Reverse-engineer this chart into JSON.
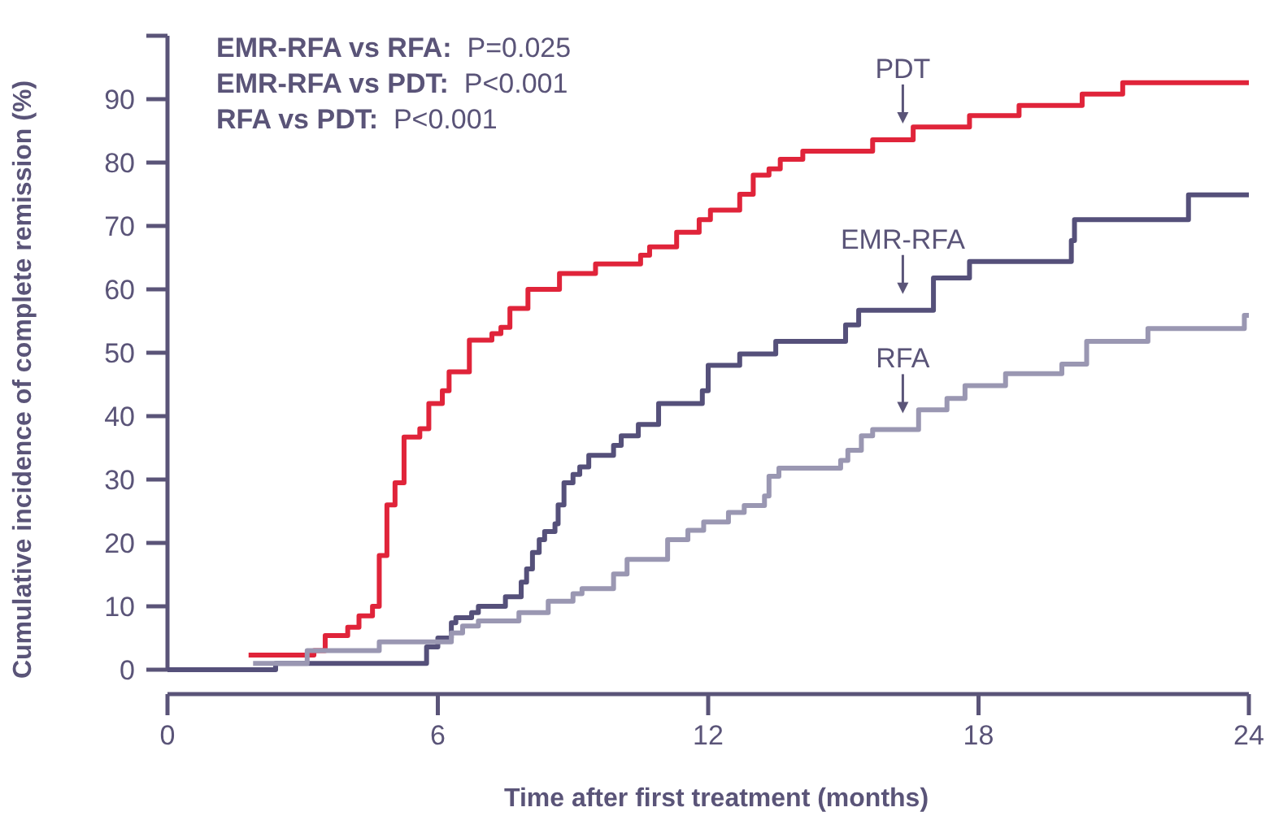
{
  "chart_data": {
    "type": "step",
    "xlabel": "Time after first treatment (months)",
    "ylabel": "Cumulative incidence of complete remission (%)",
    "xlim": [
      0,
      24
    ],
    "xticks": [
      0,
      6,
      12,
      18,
      24
    ],
    "ylim": [
      0,
      100
    ],
    "yticks": [
      0,
      10,
      20,
      30,
      40,
      50,
      60,
      70,
      80,
      90,
      {
        "value": 100,
        "label": null
      }
    ],
    "grid": false,
    "legend": false,
    "series": [
      {
        "name": "PDT",
        "color": "#e0243a",
        "x": [
          1.8,
          3.25,
          3.5,
          4.0,
          4.25,
          4.55,
          4.7,
          4.87,
          5.05,
          5.25,
          5.6,
          5.8,
          6.1,
          6.25,
          6.7,
          7.2,
          7.4,
          7.6,
          8.0,
          8.7,
          9.5,
          10.5,
          10.7,
          11.3,
          11.8,
          12.05,
          12.7,
          13.0,
          13.35,
          13.6,
          14.1,
          15.65,
          16.55,
          17.8,
          18.9,
          20.3,
          21.2,
          24
        ],
        "values": [
          2.3,
          3,
          5.4,
          6.7,
          8.5,
          10,
          18,
          26,
          29.5,
          36.7,
          38,
          42,
          44,
          47,
          52,
          53,
          54,
          57,
          60,
          62.5,
          64,
          65.4,
          66.7,
          69,
          71,
          72.5,
          75,
          78,
          79,
          80.5,
          81.8,
          83.6,
          85.6,
          87.4,
          89,
          90.8,
          92.6,
          92.6
        ]
      },
      {
        "name": "EMR-RFA",
        "color": "#55507a",
        "x": [
          0,
          2.4,
          5.75,
          6.0,
          6.3,
          6.4,
          6.75,
          6.9,
          7.5,
          7.85,
          7.97,
          8.1,
          8.25,
          8.37,
          8.6,
          8.67,
          8.8,
          9.0,
          9.15,
          9.35,
          9.9,
          10.07,
          10.45,
          10.9,
          11.87,
          12.0,
          12.7,
          13.5,
          15.05,
          15.34,
          17.0,
          17.8,
          20.06,
          20.13,
          22.66,
          24
        ],
        "values": [
          0,
          1,
          3.6,
          5,
          7.4,
          8.2,
          9,
          10,
          11.5,
          13.8,
          15.9,
          18.5,
          20.5,
          21.8,
          23,
          26,
          29.5,
          30.8,
          32,
          33.8,
          35.4,
          36.9,
          38.7,
          42,
          44,
          48,
          49.8,
          51.8,
          54.4,
          56.7,
          61.8,
          64.4,
          67.7,
          71,
          74.9,
          74.9
        ]
      },
      {
        "name": "RFA",
        "color": "#9a97b2",
        "x": [
          1.9,
          3.1,
          4.7,
          6.3,
          6.55,
          6.9,
          7.8,
          8.45,
          9.0,
          9.2,
          9.9,
          10.2,
          11.1,
          11.55,
          11.9,
          12.45,
          12.8,
          13.25,
          13.35,
          13.57,
          14.94,
          15.1,
          15.4,
          15.65,
          16.67,
          17.3,
          17.7,
          18.6,
          19.85,
          20.4,
          21.76,
          23.9,
          24
        ],
        "values": [
          1,
          3,
          4.4,
          5.8,
          6.9,
          7.7,
          9,
          10.8,
          12,
          12.8,
          15.1,
          17.4,
          20.5,
          22,
          23.3,
          24.8,
          25.9,
          27.4,
          30.5,
          31.8,
          33,
          34.6,
          36.9,
          37.9,
          41,
          42.8,
          44.8,
          46.7,
          48.2,
          51.8,
          53.8,
          55.9,
          55.9
        ]
      }
    ],
    "annotations": [
      "EMR-RFA vs RFA:  P=0.025",
      "EMR-RFA vs PDT:  P<0.001",
      "RFA vs PDT:  P<0.001"
    ]
  }
}
